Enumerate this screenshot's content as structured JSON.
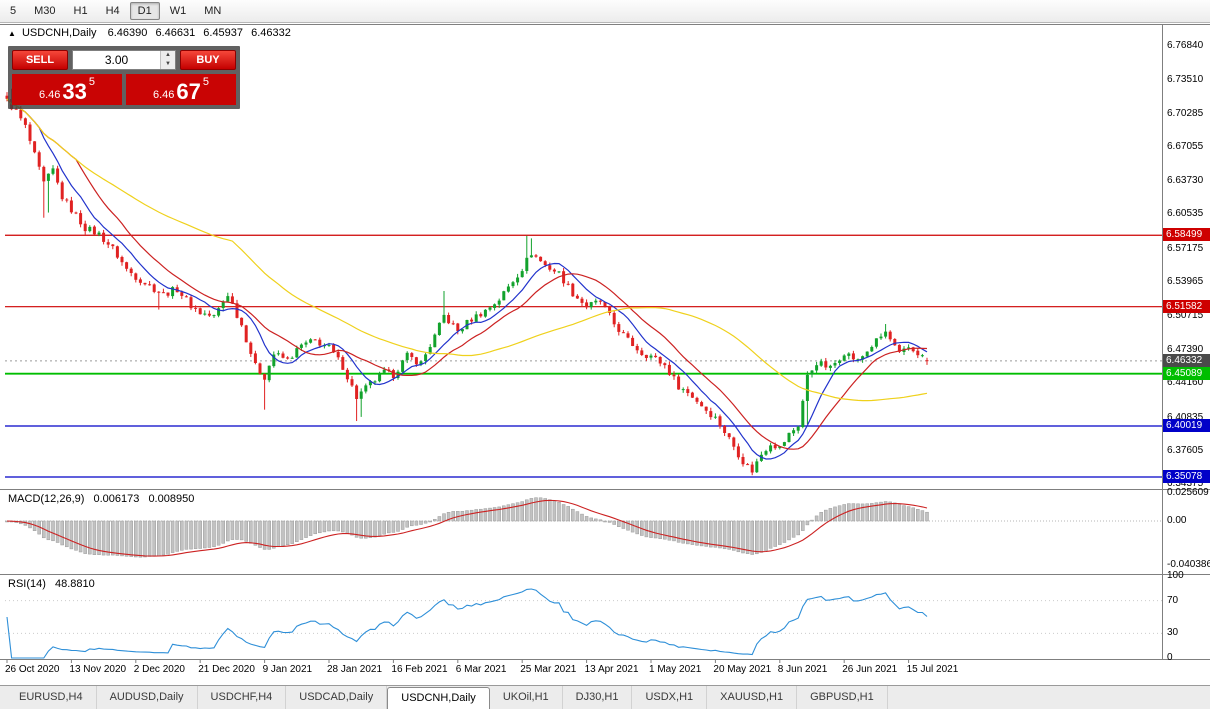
{
  "toolbar": {
    "timeframes": [
      "5",
      "M30",
      "H1",
      "H4",
      "D1",
      "W1",
      "MN"
    ],
    "active": "D1"
  },
  "header": {
    "collapse_icon": "▲",
    "symbol": "USDCNH,Daily",
    "open": "6.46390",
    "high": "6.46631",
    "low": "6.45937",
    "close": "6.46332"
  },
  "one_click_panel": {
    "sell_label": "SELL",
    "buy_label": "BUY",
    "volume": "3.00",
    "spinner_up": "▲",
    "spinner_down": "▼",
    "sell_price": {
      "prefix": "6.46",
      "pips": "33",
      "point": "5"
    },
    "buy_price": {
      "prefix": "6.46",
      "pips": "67",
      "point": "5"
    }
  },
  "price_axis": {
    "labels": [
      "6.76840",
      "6.73510",
      "6.70285",
      "6.67055",
      "6.63730",
      "6.60535",
      "6.57175",
      "6.53965",
      "6.50715",
      "6.47390",
      "6.44160",
      "6.40835",
      "6.37605",
      "6.34375"
    ]
  },
  "levels": [
    {
      "price": 6.58499,
      "label": "6.58499",
      "color": "#CE0000",
      "width": 1.2
    },
    {
      "price": 6.51582,
      "label": "6.51582",
      "color": "#CE0000",
      "width": 1.2
    },
    {
      "price": 6.45089,
      "label": "6.45089",
      "color": "#00BE00",
      "width": 1.8
    },
    {
      "price": 6.40019,
      "label": "6.40019",
      "color": "#0000C8",
      "width": 1.2
    },
    {
      "price": 6.35078,
      "label": "6.35078",
      "color": "#0000C8",
      "width": 1.2
    }
  ],
  "current_price": {
    "price": 6.46332,
    "label": "6.46332",
    "color": "#4A4A4A"
  },
  "indicators": {
    "macd": {
      "name": "MACD(12,26,9)",
      "value_main": "0.006173",
      "value_signal": "0.008950",
      "scale_labels": [
        {
          "value": 0.025609,
          "label": "0.025609"
        },
        {
          "value": 0,
          "label": "0.00"
        },
        {
          "value": -0.040386,
          "label": "-0.040386"
        }
      ]
    },
    "rsi": {
      "name": "RSI(14)",
      "value": "48.8810",
      "scale_labels": [
        {
          "value": 100,
          "label": "100"
        },
        {
          "value": 70,
          "label": "70"
        },
        {
          "value": 30,
          "label": "30"
        },
        {
          "value": 0,
          "label": "0"
        }
      ],
      "levels": [
        70,
        30
      ]
    }
  },
  "time_axis": {
    "labels": [
      "26 Oct 2020",
      "13 Nov 2020",
      "2 Dec 2020",
      "21 Dec 2020",
      "9 Jan 2021",
      "28 Jan 2021",
      "16 Feb 2021",
      "6 Mar 2021",
      "25 Mar 2021",
      "13 Apr 2021",
      "1 May 2021",
      "20 May 2021",
      "8 Jun 2021",
      "26 Jun 2021",
      "15 Jul 2021"
    ]
  },
  "tabs": {
    "items": [
      "EURUSD,H4",
      "AUDUSD,Daily",
      "USDCHF,H4",
      "USDCAD,Daily",
      "USDCNH,Daily",
      "UKOil,H1",
      "DJ30,H1",
      "USDX,H1",
      "XAUUSD,H1",
      "GBPUSD,H1"
    ],
    "active": "USDCNH,Daily"
  },
  "chart_data": {
    "type": "candlestick",
    "symbol": "USDCNH",
    "timeframe": "Daily",
    "count": 201,
    "last_close": 6.46332,
    "last_candle": {
      "o": 6.4639,
      "h": 6.46631,
      "l": 6.45937,
      "c": 6.46332
    },
    "close_anchors": [
      [
        0,
        6.715
      ],
      [
        2,
        6.705
      ],
      [
        4,
        6.69
      ],
      [
        6,
        6.662
      ],
      [
        8,
        6.635
      ],
      [
        10,
        6.648
      ],
      [
        12,
        6.622
      ],
      [
        14,
        6.61
      ],
      [
        17,
        6.592
      ],
      [
        20,
        6.586
      ],
      [
        23,
        6.572
      ],
      [
        26,
        6.552
      ],
      [
        28,
        6.545
      ],
      [
        31,
        6.536
      ],
      [
        34,
        6.528
      ],
      [
        37,
        6.533
      ],
      [
        40,
        6.517
      ],
      [
        42,
        6.51
      ],
      [
        45,
        6.506
      ],
      [
        48,
        6.528
      ],
      [
        51,
        6.498
      ],
      [
        54,
        6.458
      ],
      [
        56,
        6.448
      ],
      [
        58,
        6.47
      ],
      [
        61,
        6.464
      ],
      [
        64,
        6.478
      ],
      [
        67,
        6.483
      ],
      [
        70,
        6.476
      ],
      [
        73,
        6.458
      ],
      [
        76,
        6.428
      ],
      [
        79,
        6.441
      ],
      [
        82,
        6.452
      ],
      [
        84,
        6.45
      ],
      [
        87,
        6.468
      ],
      [
        90,
        6.461
      ],
      [
        93,
        6.487
      ],
      [
        95,
        6.507
      ],
      [
        98,
        6.492
      ],
      [
        101,
        6.504
      ],
      [
        104,
        6.512
      ],
      [
        107,
        6.523
      ],
      [
        110,
        6.541
      ],
      [
        112,
        6.553
      ],
      [
        114,
        6.568
      ],
      [
        117,
        6.556
      ],
      [
        120,
        6.548
      ],
      [
        123,
        6.529
      ],
      [
        126,
        6.516
      ],
      [
        129,
        6.521
      ],
      [
        132,
        6.499
      ],
      [
        135,
        6.483
      ],
      [
        138,
        6.471
      ],
      [
        140,
        6.468
      ],
      [
        143,
        6.459
      ],
      [
        146,
        6.439
      ],
      [
        149,
        6.429
      ],
      [
        152,
        6.416
      ],
      [
        154,
        6.408
      ],
      [
        157,
        6.388
      ],
      [
        160,
        6.366
      ],
      [
        162,
        6.357
      ],
      [
        164,
        6.373
      ],
      [
        166,
        6.384
      ],
      [
        168,
        6.379
      ],
      [
        170,
        6.392
      ],
      [
        172,
        6.401
      ],
      [
        174,
        6.448
      ],
      [
        176,
        6.462
      ],
      [
        179,
        6.456
      ],
      [
        182,
        6.472
      ],
      [
        185,
        6.463
      ],
      [
        188,
        6.478
      ],
      [
        191,
        6.491
      ],
      [
        194,
        6.469
      ],
      [
        196,
        6.476
      ],
      [
        198,
        6.471
      ],
      [
        200,
        6.46332
      ]
    ],
    "wick_events": [
      {
        "i": 1,
        "h": 6.727
      },
      {
        "i": 8,
        "l": 6.602
      },
      {
        "i": 9,
        "l": 6.607
      },
      {
        "i": 33,
        "l": 6.513
      },
      {
        "i": 56,
        "l": 6.416
      },
      {
        "i": 76,
        "l": 6.405
      },
      {
        "i": 77,
        "l": 6.409
      },
      {
        "i": 95,
        "h": 6.531
      },
      {
        "i": 113,
        "h": 6.5845
      },
      {
        "i": 114,
        "h": 6.582
      },
      {
        "i": 162,
        "l": 6.3525
      },
      {
        "i": 163,
        "l": 6.357
      },
      {
        "i": 174,
        "l": 6.402
      },
      {
        "i": 191,
        "h": 6.499
      }
    ],
    "moving_averages": [
      {
        "period": 8,
        "color": "#2233CC"
      },
      {
        "period": 16,
        "color": "#CC2222"
      },
      {
        "period": 50,
        "color": "#EFD11C"
      }
    ],
    "colors": {
      "up": "#12A22C",
      "down": "#E02222"
    }
  }
}
